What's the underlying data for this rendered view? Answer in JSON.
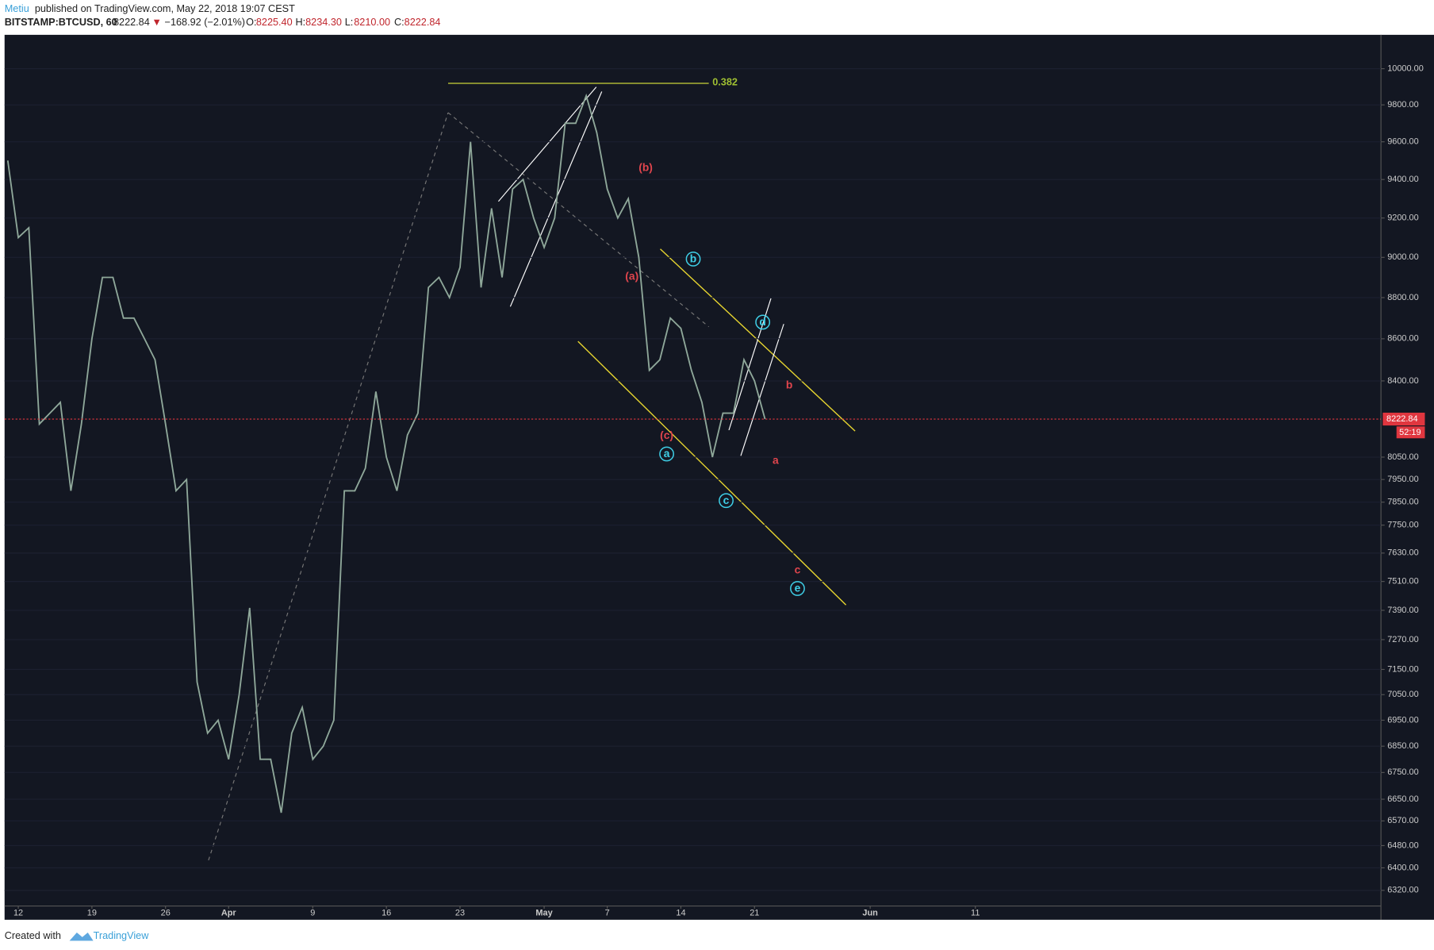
{
  "header": {
    "author": "Metiu",
    "published": "published on TradingView.com, May 22, 2018 19:07 CEST",
    "symbol": "BITSTAMP:BTCUSD, 60",
    "price": "8222.84",
    "change": "−168.92 (−2.01%)",
    "o_label": "O:",
    "open": "8225.40",
    "h_label": "H:",
    "high": "8234.30",
    "l_label": "L:",
    "low": "8210.00",
    "c_label": "C:",
    "close": "8222.84"
  },
  "footer": {
    "created": "Created with",
    "brand": "TradingView"
  },
  "chart_data": {
    "type": "line",
    "log_scale": true,
    "color": "#8fa89a",
    "categories": [
      null,
      "12",
      null,
      null,
      null,
      null,
      null,
      null,
      "19",
      null,
      null,
      null,
      null,
      null,
      null,
      "26",
      null,
      null,
      null,
      null,
      null,
      "Apr",
      null,
      null,
      null,
      null,
      null,
      null,
      null,
      "9",
      null,
      null,
      null,
      null,
      null,
      null,
      "16",
      null,
      null,
      null,
      null,
      null,
      null,
      "23",
      null,
      null,
      null,
      null,
      null,
      null,
      null,
      "May",
      null,
      null,
      null,
      null,
      null,
      "7",
      null,
      null,
      null,
      null,
      null,
      null,
      "14",
      null,
      null,
      null,
      null,
      null,
      null,
      "21",
      null,
      null,
      null,
      null,
      null,
      null,
      null,
      null,
      null,
      null,
      "Jun",
      null,
      null,
      null,
      null,
      null,
      null,
      null,
      null,
      null,
      "11"
    ],
    "values": [
      9500,
      9100,
      9150,
      8200,
      8250,
      8300,
      7900,
      8200,
      8600,
      8900,
      8900,
      8700,
      8700,
      8600,
      8500,
      8200,
      7900,
      7950,
      7100,
      6900,
      6950,
      6800,
      7050,
      7400,
      6800,
      6800,
      6600,
      6900,
      7000,
      6800,
      6850,
      6950,
      7900,
      7900,
      8000,
      8350,
      8050,
      7900,
      8150,
      8250,
      8850,
      8900,
      8800,
      8950,
      9600,
      8850,
      9250,
      8900,
      9350,
      9400,
      9200,
      9050,
      9200,
      9700,
      9700,
      9850,
      9650,
      9350,
      9200,
      9300,
      9000,
      8450,
      8500,
      8700,
      8650,
      8450,
      8300,
      8050,
      8250,
      8250,
      8500,
      8400,
      8222.84,
      null,
      null,
      null,
      null,
      null,
      null,
      null,
      null,
      null,
      null,
      null,
      null,
      null,
      null,
      null,
      null,
      null,
      null,
      null,
      null
    ],
    "ylim": [
      6265,
      10191
    ],
    "yticks": [
      {
        "value": 10000,
        "label": "10000.00"
      },
      {
        "value": 9800,
        "label": "9800.00"
      },
      {
        "value": 9600,
        "label": "9600.00"
      },
      {
        "value": 9400,
        "label": "9400.00"
      },
      {
        "value": 9200,
        "label": "9200.00"
      },
      {
        "value": 9000,
        "label": "9000.00"
      },
      {
        "value": 8800,
        "label": "8800.00"
      },
      {
        "value": 8600,
        "label": "8600.00"
      },
      {
        "value": 8400,
        "label": "8400.00"
      },
      {
        "value": 8050,
        "label": "8050.00"
      },
      {
        "value": 7950,
        "label": "7950.00"
      },
      {
        "value": 7850,
        "label": "7850.00"
      },
      {
        "value": 7750,
        "label": "7750.00"
      },
      {
        "value": 7630,
        "label": "7630.00"
      },
      {
        "value": 7510,
        "label": "7510.00"
      },
      {
        "value": 7390,
        "label": "7390.00"
      },
      {
        "value": 7270,
        "label": "7270.00"
      },
      {
        "value": 7150,
        "label": "7150.00"
      },
      {
        "value": 7050,
        "label": "7050.00"
      },
      {
        "value": 6950,
        "label": "6950.00"
      },
      {
        "value": 6850,
        "label": "6850.00"
      },
      {
        "value": 6750,
        "label": "6750.00"
      },
      {
        "value": 6650,
        "label": "6650.00"
      },
      {
        "value": 6570,
        "label": "6570.00"
      },
      {
        "value": 6480,
        "label": "6480.00"
      },
      {
        "value": 6400,
        "label": "6400.00"
      },
      {
        "value": 6320,
        "label": "6320.00"
      }
    ],
    "last_price": 8222.84,
    "countdown": "52:19",
    "annotations": [
      "0.382",
      "(b)",
      "(a)",
      "(c)",
      "a",
      "b",
      "c",
      "d",
      "e",
      "b",
      "a",
      "c"
    ]
  }
}
